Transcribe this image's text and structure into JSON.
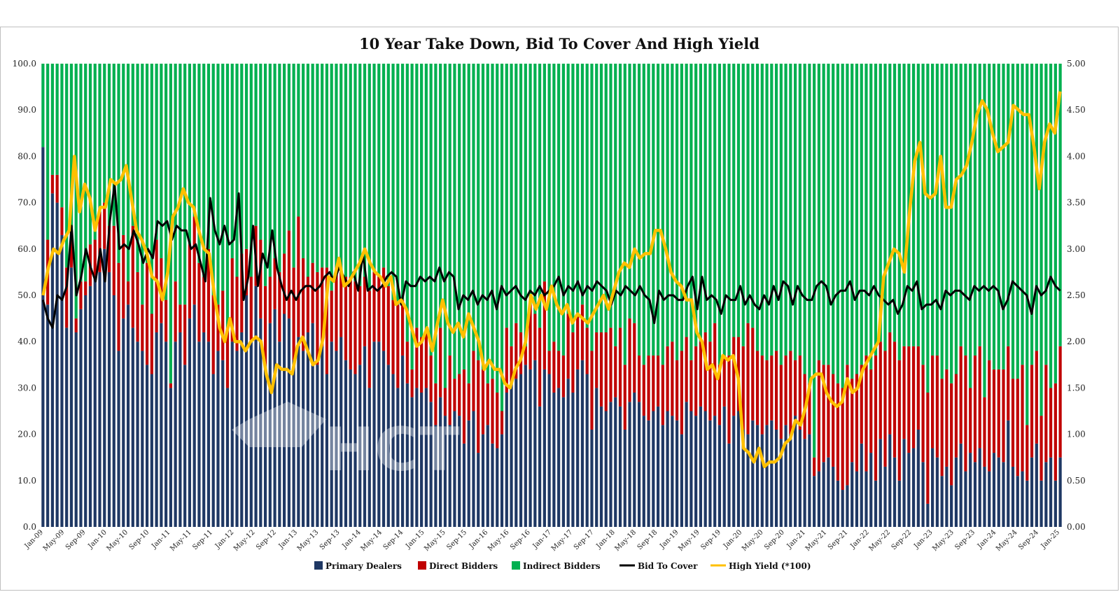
{
  "chart_data": {
    "type": "bar",
    "subtype": "stacked-100-bar-with-line-overlay",
    "title": "10 Year Take Down, Bid To Cover And High Yield",
    "watermark": "HCT",
    "colors": {
      "primary_dealers": "#1f3864",
      "direct_bidders": "#c00000",
      "indirect_bidders": "#00b050",
      "bid_to_cover": "#000000",
      "high_yield": "#ffc000"
    },
    "left_axis": {
      "ylim": [
        0,
        100
      ],
      "ticks": [
        "0.0",
        "10.0",
        "20.0",
        "30.0",
        "40.0",
        "50.0",
        "60.0",
        "70.0",
        "80.0",
        "90.0",
        "100.0"
      ]
    },
    "right_axis": {
      "ylim": [
        0,
        5
      ],
      "ticks": [
        "0.00",
        "0.50",
        "1.00",
        "1.50",
        "2.00",
        "2.50",
        "3.00",
        "3.50",
        "4.00",
        "4.50",
        "5.00"
      ]
    },
    "x_range": [
      "Jan-09",
      "Jan-25"
    ],
    "x_ticks": [
      "Jan-09",
      "May-09",
      "Sep-09",
      "Jan-10",
      "May-10",
      "Sep-10",
      "Jan-11",
      "May-11",
      "Sep-11",
      "Jan-12",
      "May-12",
      "Sep-12",
      "Jan-13",
      "May-13",
      "Sep-13",
      "Jan-14",
      "May-14",
      "Sep-14",
      "Jan-15",
      "May-15",
      "Sep-15",
      "Jan-16",
      "May-16",
      "Sep-16",
      "Jan-17",
      "May-17",
      "Sep-17",
      "Jan-18",
      "May-18",
      "Sep-18",
      "Jan-19",
      "May-19",
      "Sep-19",
      "Jan-20",
      "May-20",
      "Sep-20",
      "Jan-21",
      "May-21",
      "Sep-21",
      "Jan-22",
      "May-22",
      "Sep-22",
      "Jan-23",
      "May-23",
      "Sep-23",
      "Jan-24",
      "May-24",
      "Sep-24",
      "Jan-25"
    ],
    "legend": {
      "position": "bottom",
      "entries": [
        "Primary Dealers",
        "Direct Bidders",
        "Indirect Bidders",
        "Bid To Cover",
        "High Yield (*100)"
      ]
    },
    "series": [
      {
        "name": "Primary Dealers",
        "type": "stacked-bar",
        "axis": "left",
        "values": [
          82,
          48,
          72,
          70,
          63,
          43,
          56,
          42,
          47,
          50,
          52,
          54,
          55,
          60,
          55,
          50,
          38,
          45,
          48,
          43,
          40,
          38,
          35,
          33,
          42,
          44,
          40,
          30,
          40,
          42,
          35,
          45,
          48,
          40,
          42,
          40,
          33,
          38,
          36,
          30,
          40,
          38,
          42,
          50,
          40,
          52,
          45,
          35,
          44,
          47,
          40,
          46,
          45,
          36,
          41,
          38,
          42,
          44,
          35,
          39,
          33,
          40,
          38,
          41,
          36,
          34,
          33,
          35,
          39,
          30,
          40,
          40,
          38,
          35,
          33,
          30,
          37,
          31,
          28,
          30,
          29,
          30,
          27,
          22,
          28,
          24,
          22,
          25,
          24,
          18,
          23,
          25,
          16,
          20,
          22,
          18,
          17,
          20,
          29,
          31,
          32,
          33,
          35,
          34,
          36,
          26,
          34,
          33,
          29,
          30,
          28,
          32,
          29,
          34,
          36,
          33,
          21,
          30,
          26,
          25,
          27,
          28,
          26,
          21,
          27,
          29,
          27,
          24,
          23,
          25,
          26,
          22,
          25,
          24,
          23,
          20,
          27,
          25,
          24,
          26,
          25,
          23,
          24,
          22,
          26,
          18,
          24,
          25,
          21,
          20,
          23,
          22,
          20,
          22,
          23,
          21,
          19,
          22,
          20,
          24,
          21,
          19,
          20,
          11,
          12,
          14,
          15,
          13,
          10,
          8,
          9,
          14,
          12,
          18,
          12,
          16,
          10,
          19,
          13,
          20,
          15,
          10,
          19,
          16,
          17,
          21,
          14,
          5,
          17,
          15,
          11,
          13,
          9,
          15,
          18,
          12,
          16,
          14,
          17,
          13,
          12,
          16,
          15,
          14,
          23,
          13,
          11,
          12,
          10,
          15,
          18,
          10,
          14,
          15,
          10,
          15
        ]
      },
      {
        "name": "Direct Bidders",
        "type": "stacked-bar",
        "axis": "left",
        "values": [
          0,
          14,
          4,
          6,
          6,
          13,
          8,
          3,
          6,
          3,
          9,
          8,
          13,
          10,
          10,
          15,
          19,
          18,
          5,
          22,
          15,
          10,
          22,
          13,
          20,
          14,
          9,
          1,
          13,
          6,
          13,
          16,
          19,
          17,
          12,
          20,
          17,
          10,
          15,
          13,
          18,
          16,
          17,
          10,
          14,
          13,
          17,
          17,
          10,
          11,
          15,
          13,
          19,
          20,
          26,
          20,
          12,
          13,
          20,
          17,
          23,
          11,
          18,
          14,
          18,
          20,
          20,
          17,
          15,
          21,
          15,
          14,
          18,
          17,
          16,
          18,
          12,
          9,
          6,
          13,
          12,
          12,
          10,
          9,
          15,
          6,
          15,
          7,
          9,
          16,
          8,
          13,
          20,
          14,
          9,
          14,
          12,
          5,
          14,
          8,
          12,
          9,
          4,
          14,
          10,
          17,
          19,
          5,
          11,
          8,
          9,
          14,
          13,
          12,
          12,
          10,
          17,
          12,
          16,
          17,
          16,
          11,
          17,
          14,
          18,
          15,
          10,
          11,
          14,
          12,
          11,
          13,
          14,
          16,
          13,
          18,
          14,
          11,
          15,
          14,
          17,
          17,
          20,
          13,
          11,
          19,
          17,
          16,
          18,
          24,
          20,
          16,
          17,
          14,
          14,
          17,
          16,
          15,
          18,
          12,
          16,
          14,
          11,
          4,
          24,
          21,
          20,
          20,
          21,
          22,
          26,
          18,
          21,
          17,
          25,
          18,
          27,
          21,
          25,
          22,
          25,
          26,
          20,
          23,
          22,
          18,
          21,
          24,
          20,
          22,
          21,
          21,
          22,
          18,
          21,
          25,
          14,
          23,
          22,
          15,
          24,
          18,
          19,
          20,
          16,
          19,
          21,
          23,
          12,
          20,
          20,
          14,
          21,
          15,
          21,
          24
        ]
      },
      {
        "name": "Indirect Bidders",
        "type": "stacked-bar",
        "axis": "left",
        "values": [
          18,
          38,
          24,
          24,
          31,
          44,
          36,
          55,
          47,
          47,
          39,
          38,
          32,
          30,
          35,
          35,
          43,
          37,
          47,
          35,
          45,
          52,
          43,
          54,
          38,
          42,
          51,
          69,
          47,
          52,
          52,
          39,
          33,
          43,
          46,
          40,
          50,
          52,
          49,
          57,
          42,
          46,
          41,
          40,
          46,
          35,
          38,
          48,
          46,
          42,
          45,
          41,
          36,
          44,
          33,
          42,
          46,
          43,
          45,
          44,
          44,
          49,
          44,
          45,
          46,
          46,
          47,
          48,
          46,
          49,
          45,
          46,
          44,
          48,
          51,
          52,
          51,
          60,
          66,
          57,
          59,
          58,
          63,
          69,
          57,
          70,
          63,
          68,
          67,
          66,
          69,
          62,
          64,
          66,
          69,
          68,
          71,
          75,
          57,
          61,
          56,
          58,
          61,
          52,
          54,
          57,
          47,
          62,
          60,
          62,
          63,
          54,
          58,
          54,
          52,
          57,
          62,
          58,
          58,
          58,
          57,
          61,
          57,
          65,
          55,
          56,
          63,
          65,
          63,
          63,
          63,
          65,
          61,
          60,
          64,
          62,
          59,
          64,
          61,
          60,
          58,
          60,
          56,
          65,
          63,
          63,
          59,
          59,
          61,
          56,
          57,
          62,
          63,
          64,
          63,
          62,
          65,
          63,
          62,
          64,
          63,
          67,
          69,
          85,
          64,
          65,
          65,
          67,
          69,
          70,
          65,
          68,
          67,
          65,
          63,
          66,
          63,
          60,
          62,
          58,
          60,
          64,
          61,
          61,
          61,
          61,
          65,
          71,
          63,
          63,
          68,
          66,
          69,
          67,
          61,
          63,
          70,
          63,
          61,
          72,
          64,
          66,
          66,
          66,
          61,
          68,
          68,
          65,
          78,
          65,
          62,
          76,
          65,
          70,
          69,
          61
        ]
      },
      {
        "name": "Bid To Cover",
        "type": "line",
        "axis": "right",
        "values": [
          2.45,
          2.25,
          2.15,
          2.5,
          2.45,
          2.6,
          3.25,
          2.5,
          2.7,
          3.0,
          2.8,
          2.65,
          3.0,
          2.65,
          3.3,
          3.7,
          3.0,
          3.05,
          3.0,
          3.2,
          3.05,
          2.85,
          3.0,
          2.9,
          3.3,
          3.25,
          3.3,
          3.1,
          3.25,
          3.2,
          3.2,
          3.0,
          3.05,
          2.85,
          2.65,
          3.55,
          3.2,
          3.05,
          3.25,
          3.05,
          3.1,
          3.6,
          2.45,
          2.7,
          3.25,
          2.6,
          2.95,
          2.8,
          3.2,
          2.8,
          2.6,
          2.45,
          2.55,
          2.45,
          2.55,
          2.6,
          2.6,
          2.55,
          2.6,
          2.7,
          2.75,
          2.65,
          2.8,
          2.7,
          2.6,
          2.75,
          2.55,
          2.95,
          2.55,
          2.6,
          2.55,
          2.6,
          2.7,
          2.75,
          2.7,
          2.4,
          2.65,
          2.6,
          2.6,
          2.7,
          2.65,
          2.7,
          2.65,
          2.8,
          2.65,
          2.75,
          2.7,
          2.35,
          2.5,
          2.45,
          2.55,
          2.4,
          2.5,
          2.45,
          2.55,
          2.35,
          2.6,
          2.5,
          2.55,
          2.6,
          2.5,
          2.45,
          2.55,
          2.5,
          2.6,
          2.5,
          2.55,
          2.6,
          2.7,
          2.5,
          2.6,
          2.55,
          2.65,
          2.5,
          2.6,
          2.55,
          2.65,
          2.6,
          2.55,
          2.4,
          2.55,
          2.5,
          2.6,
          2.55,
          2.5,
          2.6,
          2.5,
          2.45,
          2.2,
          2.55,
          2.45,
          2.5,
          2.5,
          2.45,
          2.45,
          2.6,
          2.7,
          2.35,
          2.7,
          2.45,
          2.5,
          2.45,
          2.3,
          2.5,
          2.45,
          2.45,
          2.6,
          2.4,
          2.5,
          2.4,
          2.35,
          2.5,
          2.4,
          2.6,
          2.45,
          2.65,
          2.6,
          2.4,
          2.6,
          2.5,
          2.45,
          2.45,
          2.6,
          2.65,
          2.6,
          2.4,
          2.5,
          2.55,
          2.55,
          2.65,
          2.45,
          2.55,
          2.55,
          2.5,
          2.6,
          2.5,
          2.45,
          2.4,
          2.45,
          2.3,
          2.4,
          2.6,
          2.55,
          2.65,
          2.35,
          2.4,
          2.4,
          2.45,
          2.35,
          2.55,
          2.5,
          2.55,
          2.55,
          2.5,
          2.45,
          2.6,
          2.55,
          2.6,
          2.55,
          2.6,
          2.55,
          2.35,
          2.45,
          2.65,
          2.6,
          2.55,
          2.5,
          2.3,
          2.6,
          2.5,
          2.55,
          2.7,
          2.6,
          2.55
        ]
      },
      {
        "name": "High Yield (*100)",
        "type": "line",
        "axis": "right",
        "values": [
          2.5,
          2.8,
          3.0,
          2.95,
          3.1,
          3.2,
          4.0,
          3.4,
          3.7,
          3.55,
          3.2,
          3.45,
          3.45,
          3.75,
          3.7,
          3.75,
          3.9,
          3.55,
          3.2,
          3.1,
          2.95,
          2.7,
          2.65,
          2.45,
          2.75,
          3.35,
          3.45,
          3.65,
          3.5,
          3.45,
          3.2,
          3.0,
          2.95,
          2.5,
          2.15,
          2.0,
          2.25,
          2.0,
          2.0,
          1.9,
          2.0,
          2.05,
          2.0,
          1.65,
          1.45,
          1.75,
          1.7,
          1.7,
          1.65,
          1.95,
          2.05,
          1.9,
          1.75,
          1.8,
          2.05,
          2.7,
          2.65,
          2.9,
          2.6,
          2.65,
          2.75,
          2.85,
          3.0,
          2.85,
          2.75,
          2.7,
          2.6,
          2.7,
          2.4,
          2.45,
          2.35,
          2.15,
          1.95,
          2.0,
          2.15,
          1.9,
          2.2,
          2.45,
          2.2,
          2.1,
          2.2,
          2.05,
          2.3,
          2.15,
          2.0,
          1.7,
          1.8,
          1.7,
          1.7,
          1.55,
          1.5,
          1.7,
          1.8,
          2.0,
          2.5,
          2.35,
          2.5,
          2.35,
          2.6,
          2.4,
          2.3,
          2.4,
          2.2,
          2.3,
          2.25,
          2.2,
          2.3,
          2.4,
          2.5,
          2.35,
          2.55,
          2.75,
          2.85,
          2.8,
          3.0,
          2.9,
          2.95,
          2.95,
          3.2,
          3.2,
          3.0,
          2.75,
          2.65,
          2.6,
          2.45,
          2.45,
          2.1,
          2.0,
          1.7,
          1.75,
          1.6,
          1.85,
          1.8,
          1.85,
          1.6,
          0.85,
          0.8,
          0.7,
          0.85,
          0.65,
          0.7,
          0.7,
          0.75,
          0.9,
          0.95,
          1.15,
          1.1,
          1.3,
          1.6,
          1.65,
          1.65,
          1.45,
          1.35,
          1.3,
          1.35,
          1.6,
          1.45,
          1.5,
          1.7,
          1.8,
          1.9,
          2.0,
          2.7,
          2.85,
          3.0,
          2.95,
          2.75,
          3.4,
          3.95,
          4.15,
          3.6,
          3.55,
          3.6,
          4.0,
          3.45,
          3.45,
          3.75,
          3.8,
          3.9,
          4.15,
          4.45,
          4.6,
          4.5,
          4.25,
          4.05,
          4.1,
          4.15,
          4.55,
          4.5,
          4.45,
          4.45,
          4.1,
          3.65,
          4.15,
          4.35,
          4.25,
          4.7
        ]
      }
    ]
  }
}
